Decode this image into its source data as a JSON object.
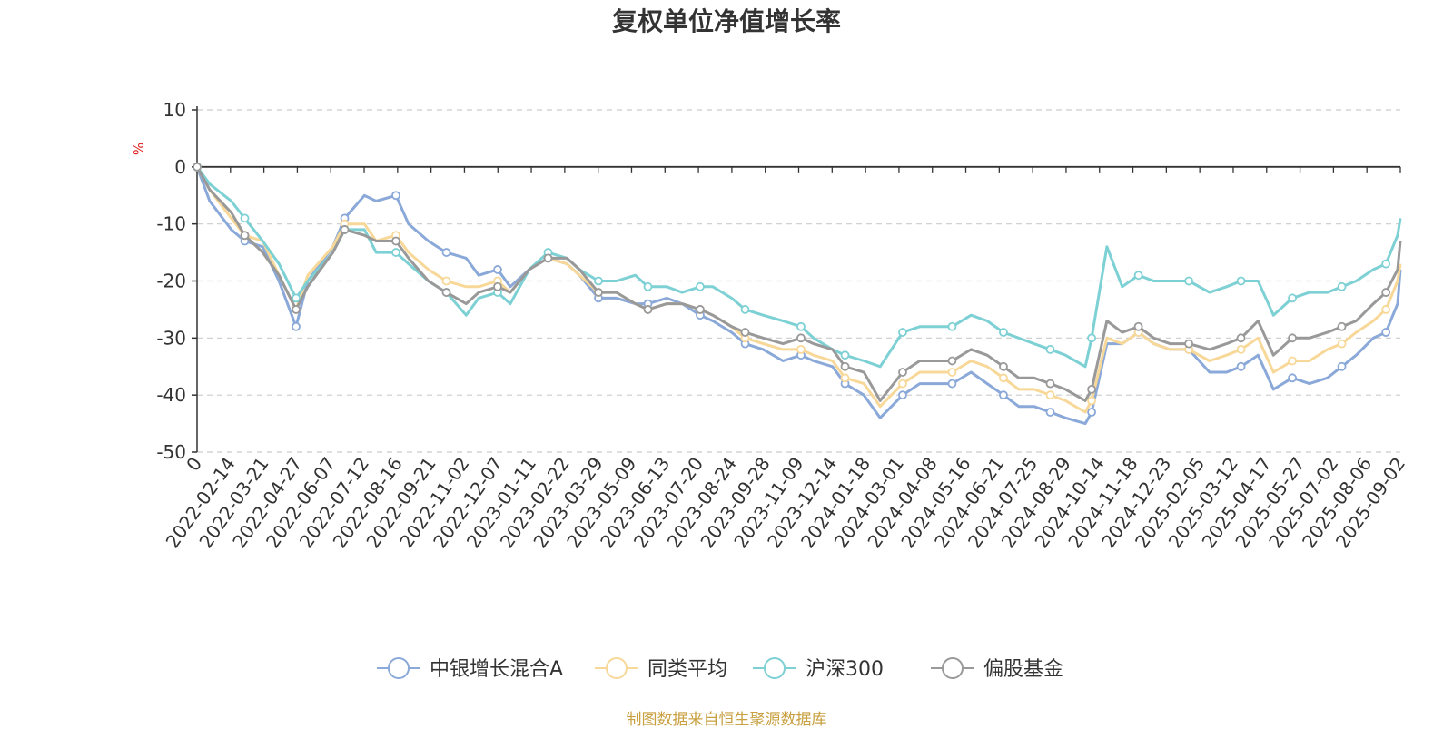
{
  "title": "复权单位净值增长率",
  "source_note": "制图数据来自恒生聚源数据库",
  "chart_data": {
    "type": "line",
    "ylabel": "%",
    "ylim": [
      -50,
      10
    ],
    "yticks": [
      10,
      0,
      -10,
      -20,
      -30,
      -40,
      -50
    ],
    "grid": true,
    "legend_position": "bottom-center",
    "x_start": "2022-01-07",
    "x_end": "2025-09-05",
    "x_tick_labels": [
      "0",
      "2022-02-14",
      "2022-03-21",
      "2022-04-27",
      "2022-06-07",
      "2022-07-12",
      "2022-08-16",
      "2022-09-21",
      "2022-11-02",
      "2022-12-07",
      "2023-01-11",
      "2023-02-22",
      "2023-03-29",
      "2023-05-09",
      "2023-06-13",
      "2023-07-20",
      "2023-08-24",
      "2023-09-28",
      "2023-11-09",
      "2023-12-14",
      "2024-01-18",
      "2024-03-01",
      "2024-04-08",
      "2024-05-16",
      "2024-06-21",
      "2024-07-25",
      "2024-08-29",
      "2024-10-14",
      "2024-11-18",
      "2024-12-23",
      "2025-02-05",
      "2025-03-12",
      "2025-04-17",
      "2025-05-27",
      "2025-07-02",
      "2025-08-06",
      "2025-09-02"
    ],
    "x": [
      "2022-01-07",
      "2022-01-21",
      "2022-02-14",
      "2022-03-01",
      "2022-03-21",
      "2022-04-08",
      "2022-04-27",
      "2022-05-10",
      "2022-06-07",
      "2022-06-20",
      "2022-07-12",
      "2022-07-25",
      "2022-08-16",
      "2022-08-30",
      "2022-09-21",
      "2022-10-11",
      "2022-11-02",
      "2022-11-16",
      "2022-12-07",
      "2022-12-21",
      "2023-01-11",
      "2023-02-01",
      "2023-02-22",
      "2023-03-08",
      "2023-03-29",
      "2023-04-18",
      "2023-05-09",
      "2023-05-23",
      "2023-06-13",
      "2023-06-30",
      "2023-07-20",
      "2023-08-03",
      "2023-08-24",
      "2023-09-08",
      "2023-09-28",
      "2023-10-20",
      "2023-11-09",
      "2023-11-23",
      "2023-12-14",
      "2023-12-28",
      "2024-01-18",
      "2024-02-05",
      "2024-03-01",
      "2024-03-20",
      "2024-04-08",
      "2024-04-25",
      "2024-05-16",
      "2024-06-03",
      "2024-06-21",
      "2024-07-08",
      "2024-07-25",
      "2024-08-12",
      "2024-08-29",
      "2024-09-20",
      "2024-09-27",
      "2024-10-14",
      "2024-10-31",
      "2024-11-18",
      "2024-12-05",
      "2024-12-23",
      "2025-01-13",
      "2025-02-05",
      "2025-02-24",
      "2025-03-12",
      "2025-03-31",
      "2025-04-17",
      "2025-05-08",
      "2025-05-27",
      "2025-06-16",
      "2025-07-02",
      "2025-07-18",
      "2025-08-06",
      "2025-08-20",
      "2025-09-02",
      "2025-09-05"
    ],
    "series": [
      {
        "name": "中银增长混合A",
        "color": "#8aa8d8",
        "values": [
          0,
          -6,
          -11,
          -13,
          -14,
          -20,
          -28,
          -20,
          -14,
          -9,
          -5,
          -6,
          -5,
          -10,
          -13,
          -15,
          -16,
          -19,
          -18,
          -21,
          -18,
          -16,
          -17,
          -19,
          -23,
          -23,
          -24,
          -24,
          -23,
          -24,
          -26,
          -27,
          -29,
          -31,
          -32,
          -34,
          -33,
          -34,
          -35,
          -38,
          -40,
          -44,
          -40,
          -38,
          -38,
          -38,
          -36,
          -38,
          -40,
          -42,
          -42,
          -43,
          -44,
          -45,
          -43,
          -31,
          -31,
          -29,
          -31,
          -32,
          -32,
          -36,
          -36,
          -35,
          -33,
          -39,
          -37,
          -38,
          -37,
          -35,
          -33,
          -30,
          -29,
          -24,
          -18
        ]
      },
      {
        "name": "同类平均",
        "color": "#f8d898",
        "values": [
          0,
          -4,
          -9,
          -12,
          -13,
          -19,
          -25,
          -19,
          -14,
          -10,
          -10,
          -13,
          -12,
          -15,
          -18,
          -20,
          -21,
          -21,
          -20,
          -22,
          -18,
          -16,
          -17,
          -19,
          -22,
          -22,
          -24,
          -25,
          -24,
          -24,
          -25,
          -26,
          -28,
          -30,
          -31,
          -32,
          -32,
          -33,
          -34,
          -37,
          -38,
          -42,
          -38,
          -36,
          -36,
          -36,
          -34,
          -35,
          -37,
          -39,
          -39,
          -40,
          -41,
          -43,
          -41,
          -30,
          -31,
          -29,
          -31,
          -32,
          -32,
          -34,
          -33,
          -32,
          -30,
          -36,
          -34,
          -34,
          -32,
          -31,
          -29,
          -27,
          -25,
          -20,
          -17
        ]
      },
      {
        "name": "沪深300",
        "color": "#7dd0d4",
        "values": [
          0,
          -3,
          -6,
          -9,
          -13,
          -17,
          -23,
          -20,
          -15,
          -11,
          -11,
          -15,
          -15,
          -17,
          -20,
          -22,
          -26,
          -23,
          -22,
          -24,
          -18,
          -15,
          -16,
          -18,
          -20,
          -20,
          -19,
          -21,
          -21,
          -22,
          -21,
          -21,
          -23,
          -25,
          -26,
          -27,
          -28,
          -30,
          -32,
          -33,
          -34,
          -35,
          -29,
          -28,
          -28,
          -28,
          -26,
          -27,
          -29,
          -30,
          -31,
          -32,
          -33,
          -35,
          -30,
          -14,
          -21,
          -19,
          -20,
          -20,
          -20,
          -22,
          -21,
          -20,
          -20,
          -26,
          -23,
          -22,
          -22,
          -21,
          -20,
          -18,
          -17,
          -12,
          -9
        ]
      },
      {
        "name": "偏股基金",
        "color": "#999999",
        "values": [
          0,
          -4,
          -8,
          -12,
          -15,
          -19,
          -25,
          -21,
          -15,
          -11,
          -12,
          -13,
          -13,
          -16,
          -20,
          -22,
          -24,
          -22,
          -21,
          -22,
          -18,
          -16,
          -16,
          -18,
          -22,
          -22,
          -24,
          -25,
          -24,
          -24,
          -25,
          -26,
          -28,
          -29,
          -30,
          -31,
          -30,
          -31,
          -32,
          -35,
          -36,
          -41,
          -36,
          -34,
          -34,
          -34,
          -32,
          -33,
          -35,
          -37,
          -37,
          -38,
          -39,
          -41,
          -39,
          -27,
          -29,
          -28,
          -30,
          -31,
          -31,
          -32,
          -31,
          -30,
          -27,
          -33,
          -30,
          -30,
          -29,
          -28,
          -27,
          -24,
          -22,
          -18,
          -13
        ]
      }
    ]
  }
}
